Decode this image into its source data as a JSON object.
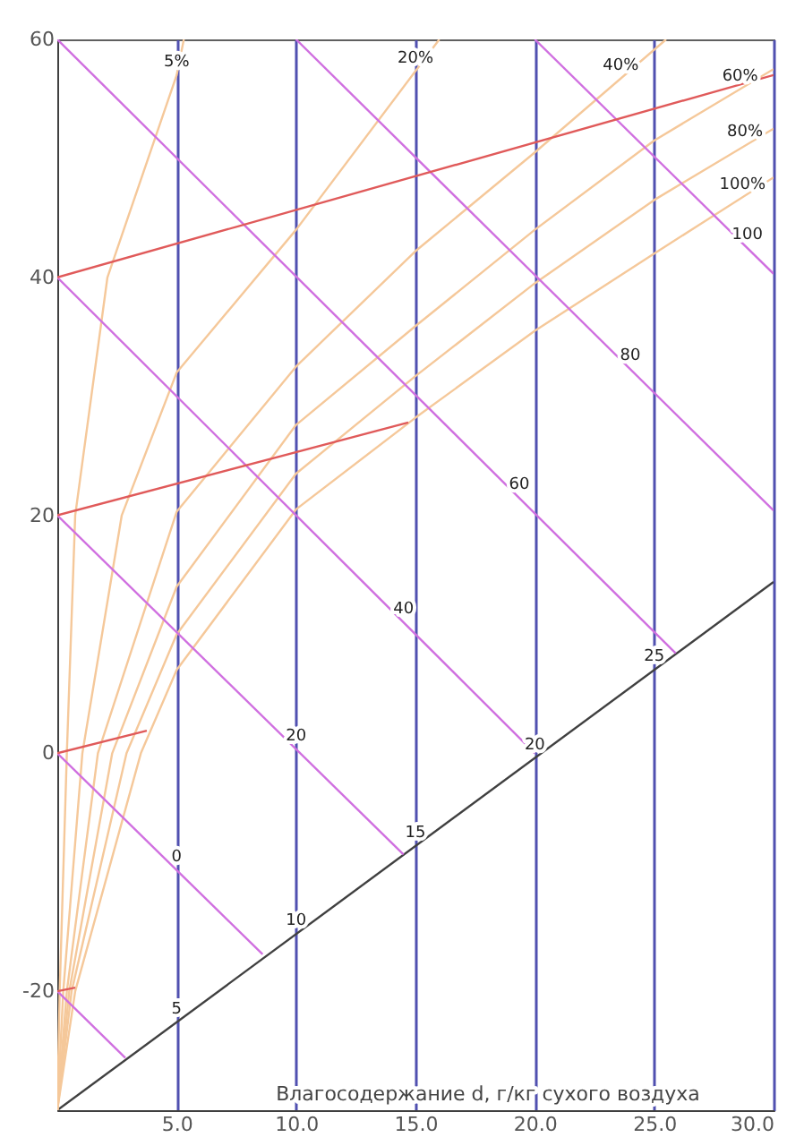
{
  "chart_data": {
    "type": "line",
    "xlabel": "Влагосодержание d, г/кг сухого воздуха",
    "xlim": [
      0,
      30
    ],
    "ylim": [
      -30,
      60
    ],
    "xticks": [
      {
        "value": 5,
        "label": "5.0"
      },
      {
        "value": 10,
        "label": "10.0"
      },
      {
        "value": 15,
        "label": "15.0"
      },
      {
        "value": 20,
        "label": "20.0"
      },
      {
        "value": 25,
        "label": "25.0"
      },
      {
        "value": 30,
        "label": "30.0"
      }
    ],
    "yticks": [
      -20,
      0,
      20,
      40,
      60
    ],
    "grid": "x",
    "series": [
      {
        "color": "#404040",
        "x": [
          0,
          30
        ],
        "values": [
          -30,
          14.4
        ]
      },
      {
        "color": "#f5c89a",
        "x": [
          0,
          0.1,
          0.4,
          0.75,
          2.1,
          5,
          5.3
        ],
        "values": [
          -30,
          -20,
          0,
          20,
          40,
          57,
          60
        ]
      },
      {
        "color": "#f5c89a",
        "x": [
          0,
          0.25,
          1.05,
          2.7,
          5,
          10,
          16
        ],
        "values": [
          -30,
          -20,
          0,
          20,
          32,
          44,
          60
        ]
      },
      {
        "color": "#f5c89a",
        "x": [
          0,
          0.4,
          1.7,
          5,
          10,
          15,
          20,
          25.5
        ],
        "values": [
          -30,
          -20,
          0,
          20.3,
          32.5,
          42.2,
          50.5,
          60
        ]
      },
      {
        "color": "#f5c89a",
        "x": [
          0,
          0.5,
          2.3,
          5,
          10,
          15,
          20,
          25,
          30
        ],
        "values": [
          -30,
          -20,
          0,
          14,
          27.6,
          35.9,
          44,
          51.5,
          57.5
        ]
      },
      {
        "color": "#f5c89a",
        "x": [
          0,
          0.6,
          2.9,
          5,
          10,
          15,
          20,
          25,
          30
        ],
        "values": [
          -30,
          -20,
          0,
          10,
          23.5,
          31.7,
          39.5,
          46.5,
          52.5
        ]
      },
      {
        "color": "#f5c89a",
        "x": [
          0,
          0.75,
          3.5,
          5,
          10,
          15,
          20,
          25,
          30
        ],
        "values": [
          -30,
          -20,
          0,
          7,
          20.5,
          28.2,
          35.5,
          42,
          48.4
        ]
      },
      {
        "color": "#d070e0",
        "x": [
          0,
          2.85
        ],
        "values": [
          -20,
          -25.6
        ]
      },
      {
        "color": "#d070e0",
        "x": [
          0,
          8.6
        ],
        "values": [
          0,
          -16.9
        ]
      },
      {
        "color": "#d070e0",
        "x": [
          0,
          14.5
        ],
        "values": [
          20,
          -8.5
        ]
      },
      {
        "color": "#d070e0",
        "x": [
          0,
          20
        ],
        "values": [
          40,
          0
        ]
      },
      {
        "color": "#d070e0",
        "x": [
          0,
          25.9
        ],
        "values": [
          60,
          8.4
        ]
      },
      {
        "color": "#d070e0",
        "x": [
          10,
          30
        ],
        "values": [
          60,
          20.4
        ]
      },
      {
        "color": "#d070e0",
        "x": [
          20,
          30
        ],
        "values": [
          60,
          40.3
        ]
      },
      {
        "color": "#e05a5a",
        "x": [
          0,
          30
        ],
        "values": [
          40,
          57
        ]
      },
      {
        "color": "#e05a5a",
        "x": [
          0,
          14.7
        ],
        "values": [
          20,
          27.8
        ]
      },
      {
        "color": "#e05a5a",
        "x": [
          0,
          3.75
        ],
        "values": [
          0,
          1.9
        ]
      },
      {
        "color": "#e05a5a",
        "x": [
          0,
          0.75
        ],
        "values": [
          -20,
          -19.7
        ]
      }
    ],
    "annotations": [
      {
        "text": "5%",
        "x": 5,
        "y": 57
      },
      {
        "text": "20%",
        "x": 15,
        "y": 57.3
      },
      {
        "text": "40%",
        "x": 23.6,
        "y": 56.7
      },
      {
        "text": "60%",
        "x": 28.6,
        "y": 55.8
      },
      {
        "text": "80%",
        "x": 28.8,
        "y": 51.1
      },
      {
        "text": "100%",
        "x": 28.7,
        "y": 46.7
      },
      {
        "text": "0",
        "x": 5,
        "y": -9.8
      },
      {
        "text": "20",
        "x": 10,
        "y": 0.3
      },
      {
        "text": "40",
        "x": 14.5,
        "y": 11
      },
      {
        "text": "60",
        "x": 19.35,
        "y": 21.5
      },
      {
        "text": "80",
        "x": 24,
        "y": 32.3
      },
      {
        "text": "100",
        "x": 28.9,
        "y": 42.5
      },
      {
        "text": "5",
        "x": 5,
        "y": -22.6
      },
      {
        "text": "10",
        "x": 10,
        "y": -15.2
      },
      {
        "text": "15",
        "x": 15,
        "y": -7.8
      },
      {
        "text": "20",
        "x": 20,
        "y": -0.4
      },
      {
        "text": "25",
        "x": 25,
        "y": 7
      }
    ]
  }
}
